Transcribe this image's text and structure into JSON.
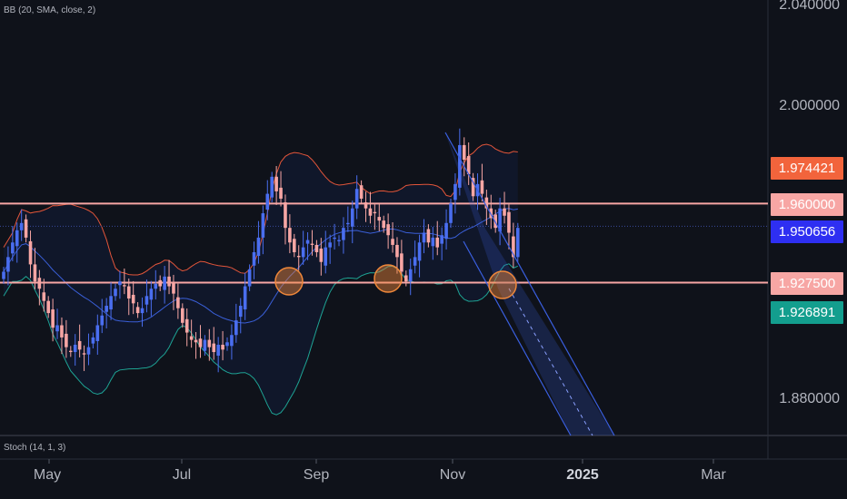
{
  "indicators": {
    "bb_label": "BB (20, SMA, close, 2)",
    "stoch_label": "Stoch (14, 1, 3)"
  },
  "price_axis": {
    "labels": [
      "2.040000",
      "2.000000",
      "1.880000"
    ]
  },
  "price_tags": [
    {
      "text": "1.974421",
      "value": 1.974421,
      "color": "#f2643c"
    },
    {
      "text": "1.960000",
      "value": 1.96,
      "color": "#f7a6a4"
    },
    {
      "text": "1.950656",
      "value": 1.950656,
      "color": "#2e2ff2"
    },
    {
      "text": "1.927500",
      "value": 1.9275,
      "color": "#f7a6a4"
    },
    {
      "text": "1.926891",
      "value": 1.926891,
      "color": "#139e8e"
    }
  ],
  "time_axis": {
    "labels": [
      "May",
      "Jul",
      "Sep",
      "Nov",
      "2025",
      "Mar"
    ]
  },
  "chart_data": {
    "type": "candlestick",
    "indicator": "Bollinger Bands (20, SMA, close, 2)",
    "y_range": [
      1.861,
      2.041
    ],
    "horizontal_levels": [
      1.96,
      1.9275
    ],
    "current_price": 1.950656,
    "colors": {
      "up": "#4a6ef0",
      "down": "#f7a6a4",
      "upper_band": "#e2553a",
      "basis": "#3a5fd8",
      "lower_band": "#1ea394",
      "level": "#f7a6a4",
      "circle": "#f0883a",
      "channel": "#3a5fe0"
    },
    "closes": [
      1.932,
      1.938,
      1.944,
      1.949,
      1.952,
      1.946,
      1.935,
      1.928,
      1.925,
      1.92,
      1.915,
      1.909,
      1.91,
      1.905,
      1.901,
      1.899,
      1.902,
      1.9,
      1.898,
      1.901,
      1.905,
      1.91,
      1.914,
      1.918,
      1.922,
      1.925,
      1.928,
      1.926,
      1.921,
      1.919,
      1.915,
      1.917,
      1.922,
      1.925,
      1.927,
      1.926,
      1.93,
      1.926,
      1.923,
      1.917,
      1.911,
      1.907,
      1.904,
      1.903,
      1.901,
      1.904,
      1.901,
      1.899,
      1.902,
      1.9,
      1.903,
      1.906,
      1.912,
      1.918,
      1.926,
      1.933,
      1.94,
      1.946,
      1.956,
      1.964,
      1.971,
      1.965,
      1.962,
      1.95,
      1.944,
      1.94,
      1.938,
      1.942,
      1.945,
      1.943,
      1.94,
      1.936,
      1.942,
      1.944,
      1.946,
      1.945,
      1.95,
      1.952,
      1.958,
      1.966,
      1.962,
      1.958,
      1.955,
      1.956,
      1.953,
      1.95,
      1.947,
      1.943,
      1.938,
      1.932,
      1.928,
      1.933,
      1.938,
      1.944,
      1.948,
      1.944,
      1.946,
      1.942,
      1.947,
      1.952,
      1.96,
      1.968,
      1.984,
      1.978,
      1.972,
      1.963,
      1.968,
      1.964,
      1.958,
      1.954,
      1.95,
      1.958,
      1.955,
      1.948,
      1.938,
      1.95
    ]
  }
}
